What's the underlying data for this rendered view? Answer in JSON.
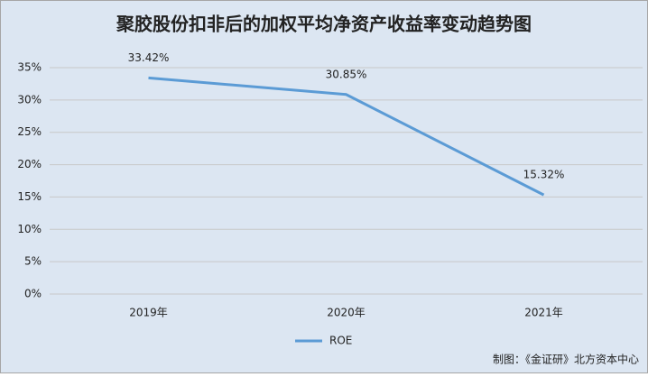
{
  "chart_data": {
    "type": "line",
    "title": "聚胶股份扣非后的加权平均净资产收益率变动趋势图",
    "categories": [
      "2019年",
      "2020年",
      "2021年"
    ],
    "series": [
      {
        "name": "ROE",
        "color": "#5b9bd5",
        "values": [
          33.42,
          30.85,
          15.32
        ],
        "value_labels": [
          "33.42%",
          "30.85%",
          "15.32%"
        ]
      }
    ],
    "ylim": [
      0,
      35
    ],
    "yticks": [
      {
        "value": 0,
        "label": "0%"
      },
      {
        "value": 5,
        "label": "5%"
      },
      {
        "value": 10,
        "label": "10%"
      },
      {
        "value": 15,
        "label": "15%"
      },
      {
        "value": 20,
        "label": "20%"
      },
      {
        "value": 25,
        "label": "25%"
      },
      {
        "value": 30,
        "label": "30%"
      },
      {
        "value": 35,
        "label": "35%"
      }
    ],
    "grid": true,
    "legend": "bottom",
    "source": "制图：《金证研》北方资本中心"
  }
}
